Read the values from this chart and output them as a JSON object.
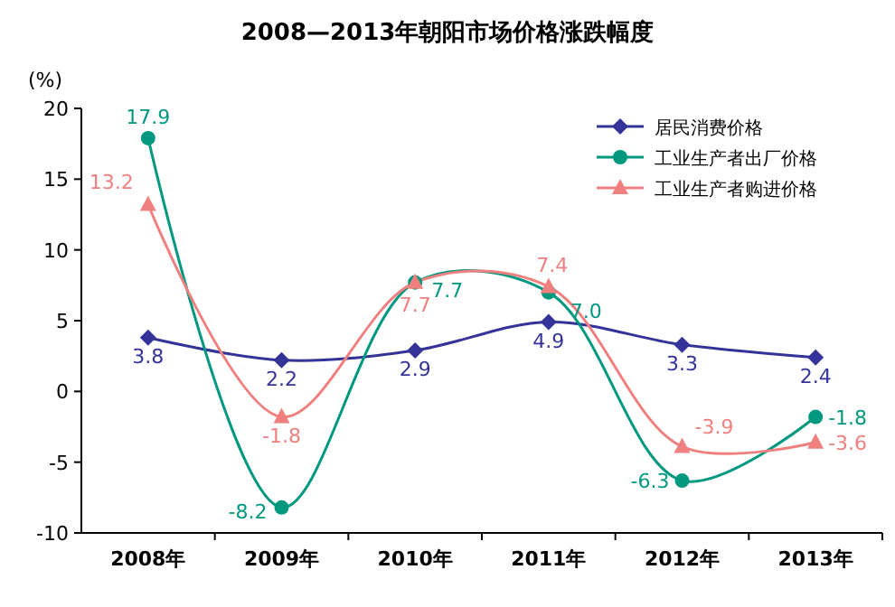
{
  "chart_data": {
    "type": "line",
    "title": "2008—2013年朝阳市场价格涨跌幅度",
    "ylabel": "(%)",
    "categories": [
      "2008年",
      "2009年",
      "2010年",
      "2011年",
      "2012年",
      "2013年"
    ],
    "series": [
      {
        "name": "居民消费价格",
        "color": "#333399",
        "marker": "diamond",
        "values": [
          3.8,
          2.2,
          2.9,
          4.9,
          3.3,
          2.4
        ]
      },
      {
        "name": "工业生产者出厂价格",
        "color": "#009980",
        "marker": "circle",
        "values": [
          17.9,
          -8.2,
          7.7,
          7.0,
          -6.3,
          -1.8
        ],
        "value_labels": [
          "17.9",
          "-8.2",
          "7.7",
          "7.0",
          "-6.3",
          "-1.8"
        ]
      },
      {
        "name": "工业生产者购进价格",
        "color": "#f08080",
        "marker": "triangle",
        "values": [
          13.2,
          -1.8,
          7.7,
          7.4,
          -3.9,
          -3.6
        ]
      }
    ],
    "ylim": [
      -10,
      20
    ],
    "yticks": [
      -10,
      -5,
      0,
      5,
      10,
      15,
      20
    ],
    "grid": false,
    "legend": "top right",
    "data_labels": true
  }
}
